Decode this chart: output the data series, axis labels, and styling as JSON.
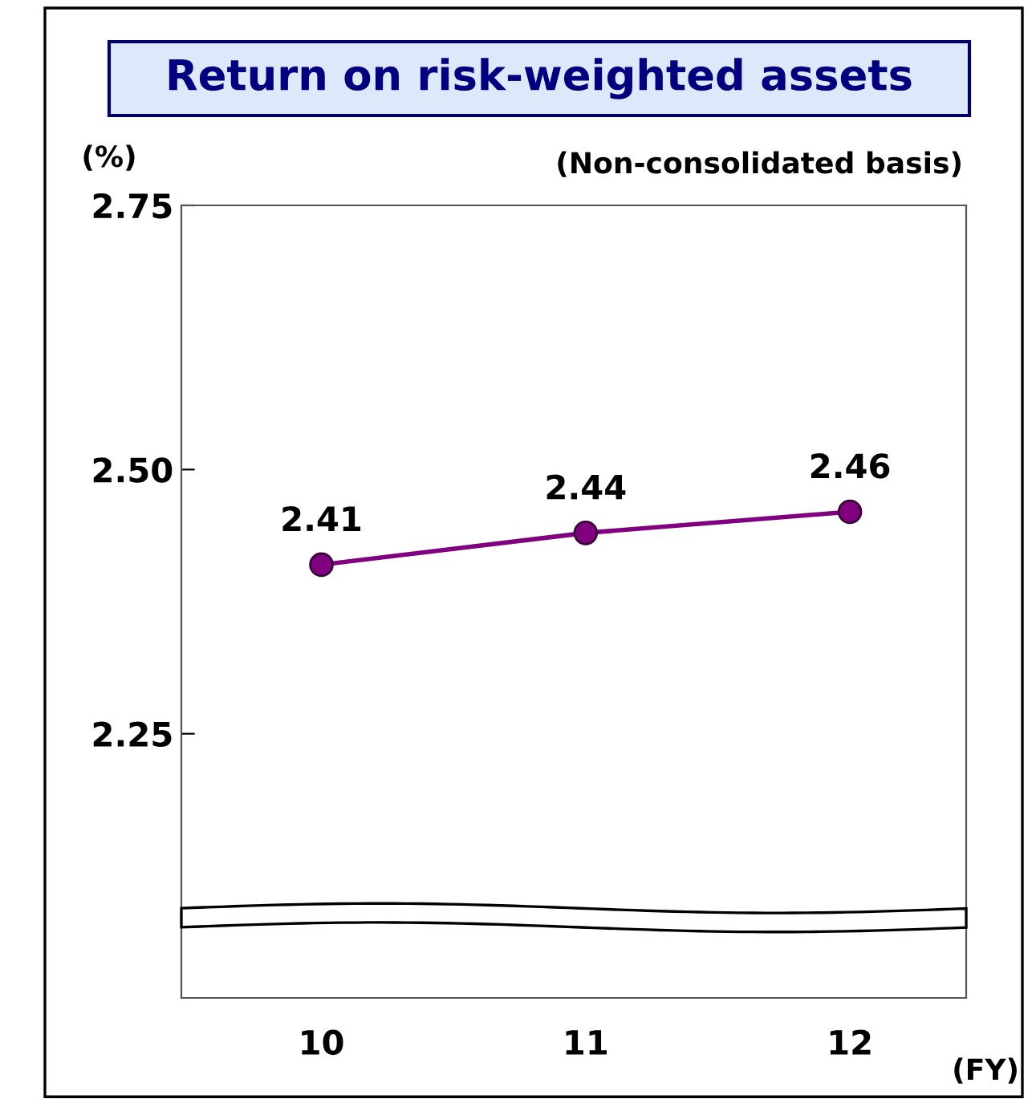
{
  "chart_data": {
    "type": "line",
    "title": "Return on risk-weighted assets",
    "subtitle": "(Non-consolidated basis)",
    "ylabel": "(%)",
    "xlabel": "(FY)",
    "categories": [
      "10",
      "11",
      "12"
    ],
    "series": [
      {
        "color": "#800080",
        "values": [
          2.41,
          2.44,
          2.46
        ]
      }
    ],
    "ylim": [
      2.0,
      2.75
    ],
    "yticks": [
      2.25,
      {
        "value": 2.5,
        "label": "2.50"
      },
      2.75
    ],
    "marker": "circle",
    "line_style": "solid",
    "data_labels": true,
    "grid": false,
    "legend": false
  }
}
